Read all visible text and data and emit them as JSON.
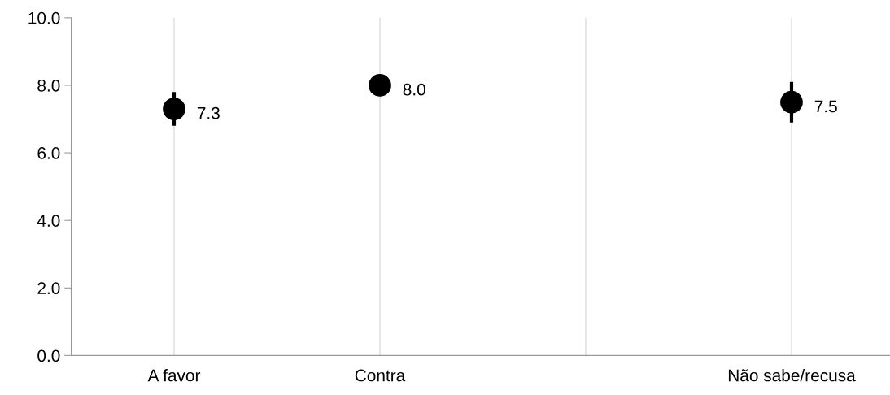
{
  "chart_data": {
    "type": "scatter",
    "categories": [
      "A favor",
      "Contra",
      null,
      "Não sabe/recusa"
    ],
    "values": [
      7.3,
      8.0,
      null,
      7.5
    ],
    "errors": [
      0.5,
      null,
      null,
      0.6
    ],
    "value_labels": [
      "7.3",
      "8.0",
      null,
      "7.5"
    ],
    "color": "#000000",
    "marker": "circle",
    "ylim": [
      0,
      10
    ],
    "yticks": [
      {
        "value": 0,
        "label": "0.0"
      },
      {
        "value": 2,
        "label": "2.0"
      },
      {
        "value": 4,
        "label": "4.0"
      },
      {
        "value": 6,
        "label": "6.0"
      },
      {
        "value": 8,
        "label": "8.0"
      },
      {
        "value": 10,
        "label": "10.0"
      }
    ],
    "grid": "x"
  }
}
